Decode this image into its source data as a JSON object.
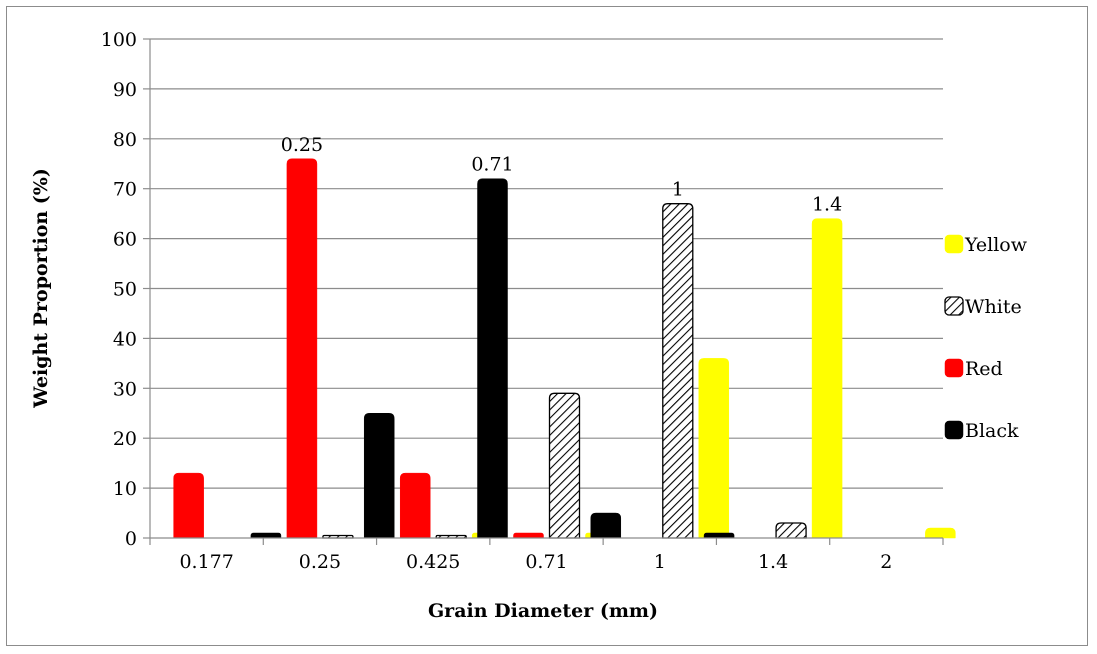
{
  "chart_data": {
    "type": "bar",
    "xlabel": "Grain Diameter (mm)",
    "ylabel": "Weight Proportion (%)",
    "ylim": [
      0,
      100
    ],
    "yticks": [
      0,
      10,
      20,
      30,
      40,
      50,
      60,
      70,
      80,
      90,
      100
    ],
    "grid": "horizontal",
    "legend_position": "right",
    "categories": [
      "0.177",
      "0.25",
      "0.425",
      "0.71",
      "1",
      "1.4",
      "2"
    ],
    "series": [
      {
        "name": "Black",
        "color": "#000000",
        "pattern": "solid",
        "values": [
          0,
          1,
          25,
          72,
          5,
          1,
          0
        ]
      },
      {
        "name": "Red",
        "color": "#ff0000",
        "pattern": "solid",
        "values": [
          13,
          76,
          13,
          1,
          0,
          0,
          0
        ]
      },
      {
        "name": "White",
        "color": "#ffffff",
        "pattern": "hatch",
        "values": [
          0,
          0.5,
          0.5,
          29,
          67,
          3,
          0
        ]
      },
      {
        "name": "Yellow",
        "color": "#ffff00",
        "pattern": "solid",
        "values": [
          0,
          0,
          1,
          1,
          36,
          64,
          2
        ]
      }
    ],
    "legend_order": [
      "Yellow",
      "White",
      "Red",
      "Black"
    ],
    "data_labels": [
      {
        "category": "0.25",
        "series": "Red",
        "text": "0.25"
      },
      {
        "category": "0.71",
        "series": "Black",
        "text": "0.71"
      },
      {
        "category": "1",
        "series": "White",
        "text": "1"
      },
      {
        "category": "1.4",
        "series": "Yellow",
        "text": "1.4"
      }
    ]
  }
}
